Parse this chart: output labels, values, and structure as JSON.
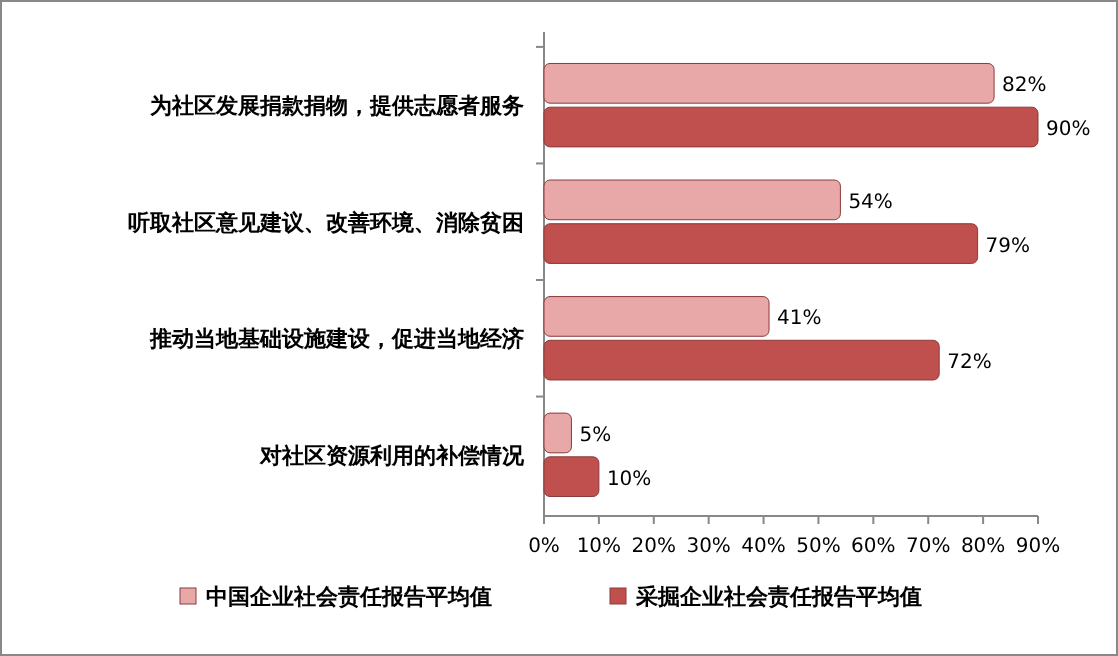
{
  "chart_data": {
    "type": "bar",
    "orientation": "horizontal",
    "categories": [
      "为社区发展捐款捐物，提供志愿者服务",
      "听取社区意见建议、改善环境、消除贫困",
      "推动当地基础设施建设，促进当地经济",
      "对社区资源利用的补偿情况"
    ],
    "series": [
      {
        "name": "中国企业社会责任报告平均值",
        "color": "#e8a8a8",
        "values": [
          82,
          54,
          41,
          5
        ],
        "value_labels": [
          "82%",
          "54%",
          "41%",
          "5%"
        ]
      },
      {
        "name": "采掘企业社会责任报告平均值",
        "color": "#c0504d",
        "values": [
          90,
          79,
          72,
          10
        ],
        "value_labels": [
          "90%",
          "79%",
          "72%",
          "10%"
        ]
      }
    ],
    "xlim": [
      0,
      90
    ],
    "xticks": [
      {
        "value": 0,
        "label": "0%"
      },
      {
        "value": 10,
        "label": "10%"
      },
      {
        "value": 20,
        "label": "20%"
      },
      {
        "value": 30,
        "label": "30%"
      },
      {
        "value": 40,
        "label": "40%"
      },
      {
        "value": 50,
        "label": "50%"
      },
      {
        "value": 60,
        "label": "60%"
      },
      {
        "value": 70,
        "label": "70%"
      },
      {
        "value": 80,
        "label": "80%"
      },
      {
        "value": 90,
        "label": "90%"
      }
    ],
    "legend": "bottom"
  }
}
